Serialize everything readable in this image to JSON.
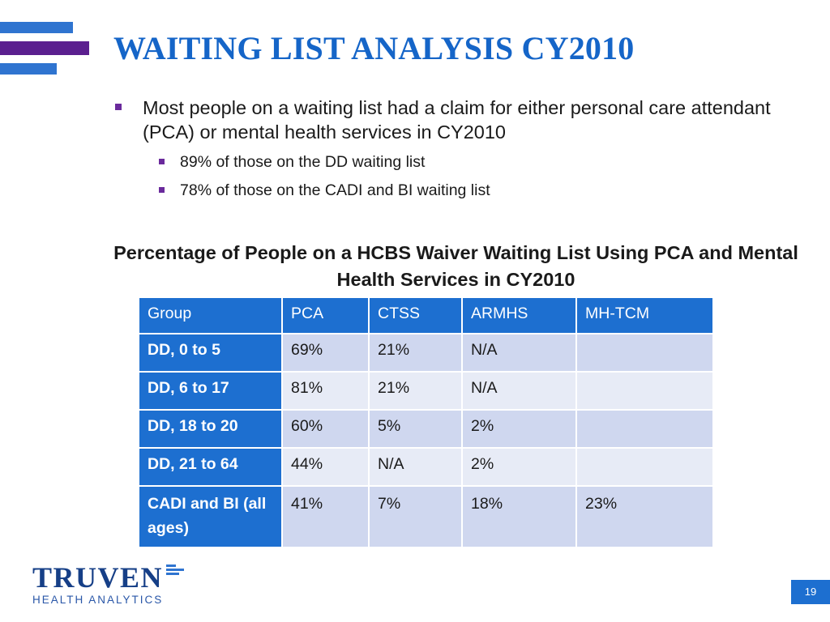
{
  "title": "WAITING LIST ANALYSIS CY2010",
  "bullets": {
    "main": "Most people on a waiting list had a claim for either personal care attendant (PCA) or mental health services in CY2010",
    "sub": [
      "89% of those on the DD waiting list",
      "78% of those on the CADI and BI waiting list"
    ]
  },
  "table": {
    "title": "Percentage of People on a HCBS Waiver Waiting List Using PCA and Mental Health Services in CY2010",
    "headers": [
      "Group",
      "PCA",
      "CTSS",
      "ARMHS",
      "MH-TCM"
    ],
    "rows": [
      [
        "DD, 0 to 5",
        "69%",
        "21%",
        "N/A",
        ""
      ],
      [
        "DD, 6 to 17",
        "81%",
        "21%",
        "N/A",
        ""
      ],
      [
        "DD, 18 to 20",
        "60%",
        "5%",
        "2%",
        ""
      ],
      [
        "DD, 21 to 64",
        "44%",
        "N/A",
        "2%",
        ""
      ],
      [
        "CADI and BI (all ages)",
        "41%",
        "7%",
        "18%",
        "23%"
      ]
    ]
  },
  "logo": {
    "name": "TRUVEN",
    "tagline": "HEALTH ANALYTICS"
  },
  "page_number": "19",
  "colors": {
    "accent": "#1d6fd0",
    "title": "#1565c8",
    "purple": "#5b1f8f"
  }
}
